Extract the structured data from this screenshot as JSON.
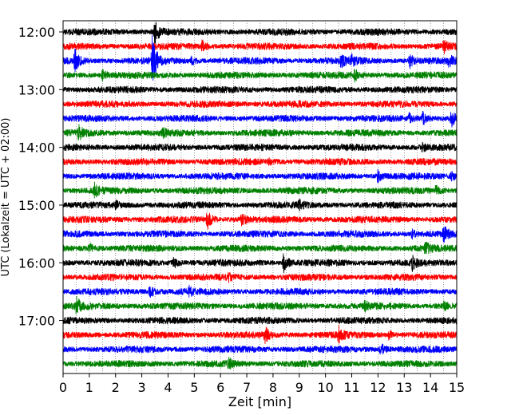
{
  "chart_data": {
    "type": "line",
    "title": "",
    "xlabel": "Zeit  [min]",
    "ylabel": "UTC (Lokalzeit = UTC + 02:00)",
    "xlim": [
      0,
      15
    ],
    "x_ticks": [
      0,
      1,
      2,
      3,
      4,
      5,
      6,
      7,
      8,
      9,
      10,
      11,
      12,
      13,
      14,
      15
    ],
    "x_grid_minor_step": 0.5,
    "y_ticks": [
      {
        "row": 0,
        "label": "12:00"
      },
      {
        "row": 4,
        "label": "13:00"
      },
      {
        "row": 8,
        "label": "14:00"
      },
      {
        "row": 12,
        "label": "15:00"
      },
      {
        "row": 16,
        "label": "16:00"
      },
      {
        "row": 20,
        "label": "17:00"
      }
    ],
    "row_count": 24,
    "row_color_cycle": [
      "#000000",
      "#ff0000",
      "#0000ff",
      "#008000"
    ],
    "grid": "vertical dotted",
    "legend": "none",
    "rows": [
      {
        "start": "12:00",
        "events": [
          {
            "t": 3.5,
            "amp": 1.1
          }
        ]
      },
      {
        "start": "12:15",
        "events": [
          {
            "t": 5.3,
            "amp": 0.45
          },
          {
            "t": 14.5,
            "amp": 0.5
          }
        ]
      },
      {
        "start": "12:30",
        "events": [
          {
            "t": 0.45,
            "amp": 1.0
          },
          {
            "t": 3.4,
            "amp": 2.4
          },
          {
            "t": 4.9,
            "amp": 0.3
          },
          {
            "t": 10.6,
            "amp": 0.45
          },
          {
            "t": 11.0,
            "amp": 0.35
          },
          {
            "t": 13.2,
            "amp": 0.6
          },
          {
            "t": 14.7,
            "amp": 0.4
          }
        ]
      },
      {
        "start": "12:45",
        "events": [
          {
            "t": 1.5,
            "amp": 0.4
          },
          {
            "t": 11.1,
            "amp": 0.5
          }
        ]
      },
      {
        "start": "13:00",
        "events": []
      },
      {
        "start": "13:15",
        "events": []
      },
      {
        "start": "13:30",
        "events": [
          {
            "t": 13.2,
            "amp": 0.4
          },
          {
            "t": 13.7,
            "amp": 0.55
          },
          {
            "t": 14.8,
            "amp": 0.6
          }
        ]
      },
      {
        "start": "13:45",
        "events": [
          {
            "t": 0.6,
            "amp": 0.6
          },
          {
            "t": 3.8,
            "amp": 0.3
          }
        ]
      },
      {
        "start": "14:00",
        "events": [
          {
            "t": 13.7,
            "amp": 0.3
          }
        ]
      },
      {
        "start": "14:15",
        "events": [
          {
            "t": 7.8,
            "amp": 0.25
          }
        ]
      },
      {
        "start": "14:30",
        "events": [
          {
            "t": 12.0,
            "amp": 0.5
          },
          {
            "t": 14.8,
            "amp": 0.3
          }
        ]
      },
      {
        "start": "14:45",
        "events": [
          {
            "t": 1.2,
            "amp": 0.5
          },
          {
            "t": 14.2,
            "amp": 0.4
          }
        ]
      },
      {
        "start": "15:00",
        "events": [
          {
            "t": 2.0,
            "amp": 0.25
          },
          {
            "t": 9.0,
            "amp": 0.3
          }
        ]
      },
      {
        "start": "15:15",
        "events": [
          {
            "t": 5.5,
            "amp": 0.8
          },
          {
            "t": 6.8,
            "amp": 0.5
          }
        ]
      },
      {
        "start": "15:30",
        "events": [
          {
            "t": 13.3,
            "amp": 0.3
          },
          {
            "t": 14.5,
            "amp": 0.6
          }
        ]
      },
      {
        "start": "15:45",
        "events": [
          {
            "t": 1.0,
            "amp": 0.4
          },
          {
            "t": 13.8,
            "amp": 0.45
          }
        ]
      },
      {
        "start": "16:00",
        "events": [
          {
            "t": 4.2,
            "amp": 0.45
          },
          {
            "t": 8.4,
            "amp": 0.9
          },
          {
            "t": 13.3,
            "amp": 0.55
          }
        ]
      },
      {
        "start": "16:15",
        "events": [
          {
            "t": 6.3,
            "amp": 0.25
          }
        ]
      },
      {
        "start": "16:30",
        "events": [
          {
            "t": 3.3,
            "amp": 0.5
          },
          {
            "t": 4.8,
            "amp": 0.35
          }
        ]
      },
      {
        "start": "16:45",
        "events": [
          {
            "t": 0.5,
            "amp": 0.7
          },
          {
            "t": 11.5,
            "amp": 0.3
          },
          {
            "t": 14.5,
            "amp": 0.35
          }
        ]
      },
      {
        "start": "17:00",
        "events": []
      },
      {
        "start": "17:15",
        "events": [
          {
            "t": 7.7,
            "amp": 0.6
          },
          {
            "t": 10.5,
            "amp": 0.7
          },
          {
            "t": 12.4,
            "amp": 0.35
          }
        ]
      },
      {
        "start": "17:30",
        "events": [
          {
            "t": 12.1,
            "amp": 0.55
          }
        ]
      },
      {
        "start": "17:45",
        "events": [
          {
            "t": 6.3,
            "amp": 0.4
          }
        ]
      }
    ]
  }
}
